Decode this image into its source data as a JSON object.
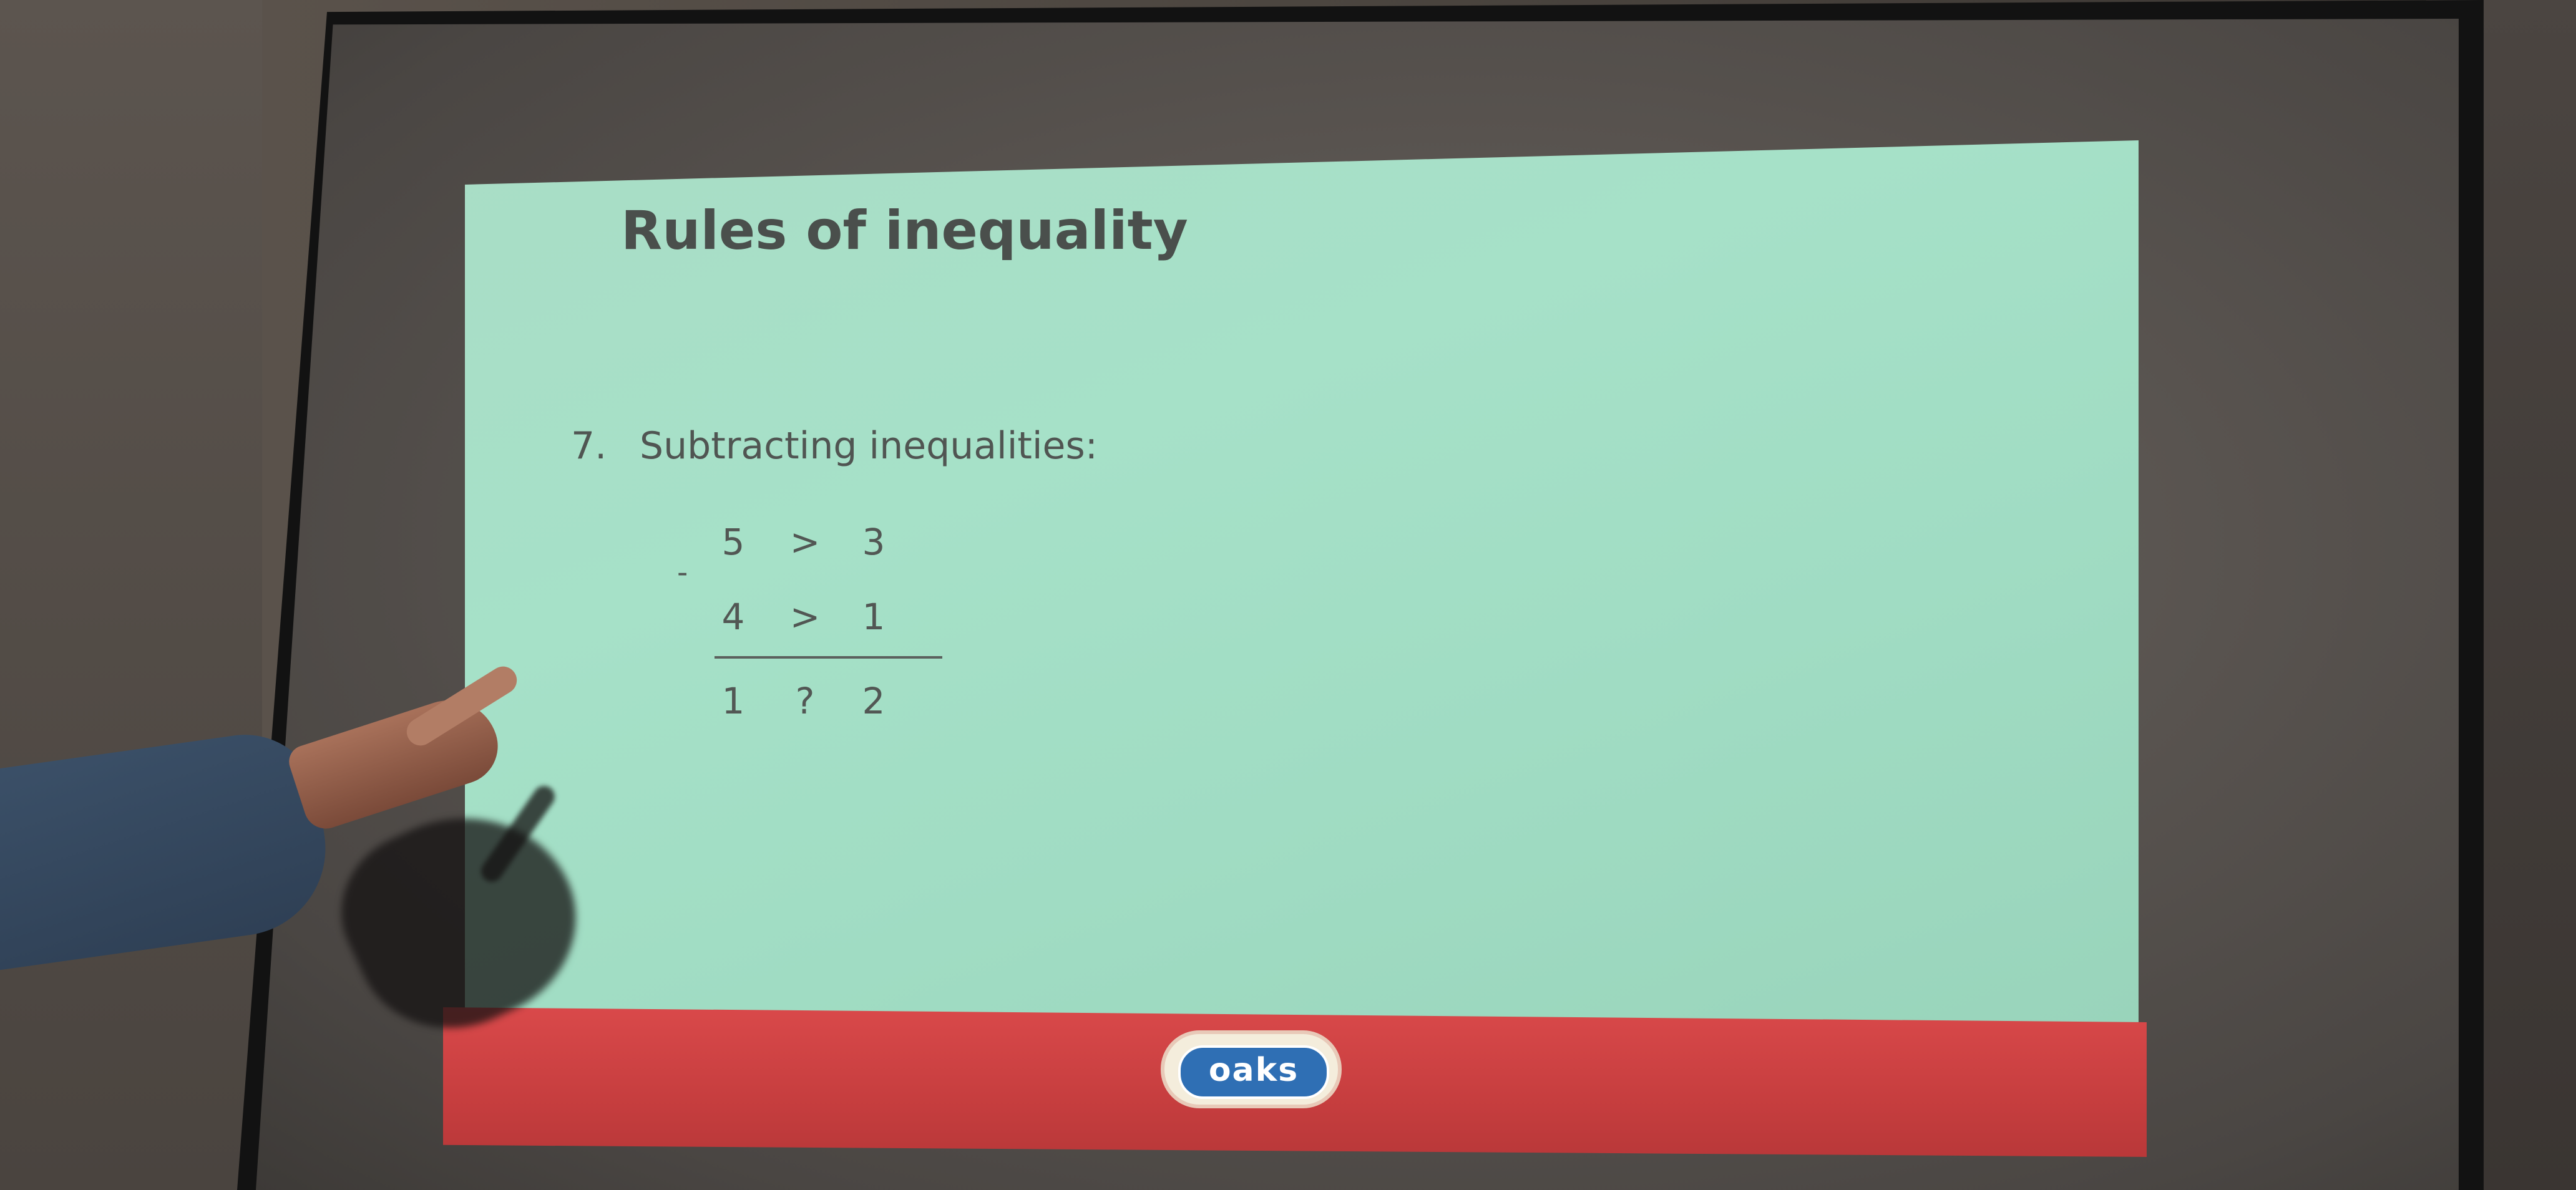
{
  "slide": {
    "title": "Rules of inequality",
    "item_number": "7.",
    "item_label": "Subtracting inequalities:",
    "operation_sign": "-",
    "rows": [
      [
        "5",
        ">",
        "3"
      ],
      [
        "4",
        ">",
        "1"
      ],
      [
        "1",
        "?",
        "2"
      ]
    ]
  },
  "footer": {
    "band_color": "#d9494a",
    "logo_text": "oaks"
  },
  "colors": {
    "slide_background": "#a6e1c8",
    "text": "#4a4f4c",
    "logo_blue": "#2f6fb4"
  }
}
